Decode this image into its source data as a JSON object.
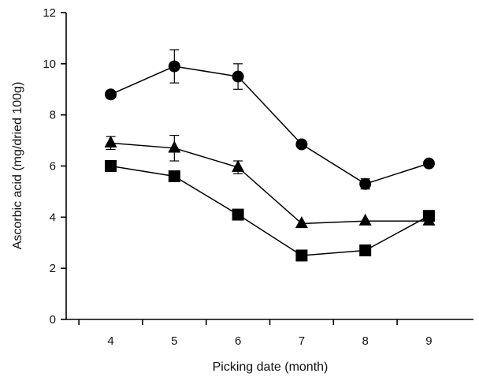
{
  "chart_data": {
    "type": "line",
    "title": "",
    "xlabel": "Picking date (month)",
    "ylabel": "Ascorbic acid (mg/dried 100g)",
    "x": [
      4,
      5,
      6,
      7,
      8,
      9
    ],
    "x_tick_labels": [
      "4",
      "5",
      "6",
      "7",
      "8",
      "9"
    ],
    "y_tick_labels": [
      "0",
      "2",
      "4",
      "6",
      "8",
      "10",
      "12"
    ],
    "ylim": [
      0,
      12
    ],
    "grid": false,
    "legend": "none",
    "series": [
      {
        "marker": "circle",
        "values": [
          8.8,
          9.9,
          9.5,
          6.85,
          5.3,
          6.1
        ],
        "errors": [
          0,
          0.65,
          0.5,
          0,
          0.2,
          0
        ]
      },
      {
        "marker": "triangle",
        "values": [
          6.9,
          6.7,
          5.95,
          3.75,
          3.85,
          3.85
        ],
        "errors": [
          0.25,
          0.5,
          0.25,
          0,
          0,
          0
        ]
      },
      {
        "marker": "square",
        "values": [
          6.0,
          5.6,
          4.1,
          2.5,
          2.7,
          4.05
        ],
        "errors": [
          0,
          0,
          0,
          0,
          0,
          0
        ]
      }
    ],
    "colors": {
      "ink": "#000000",
      "background": "#ffffff"
    }
  }
}
